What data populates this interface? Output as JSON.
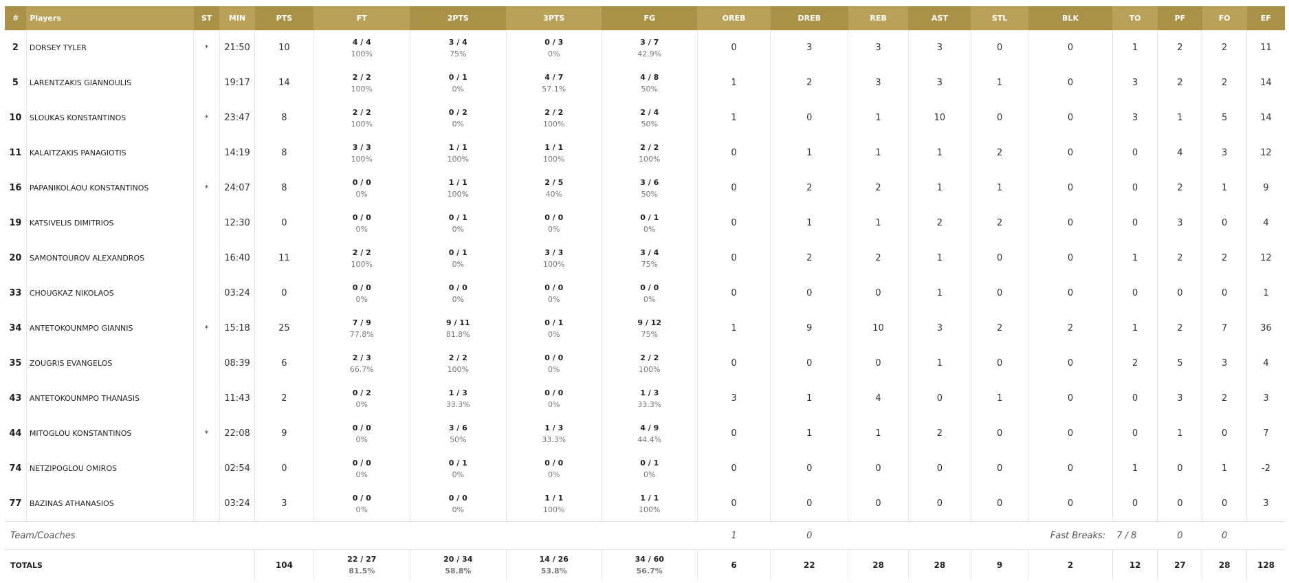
{
  "headers": [
    "#",
    "Players",
    "ST",
    "MIN",
    "PTS",
    "FT",
    "2PTS",
    "3PTS",
    "FG",
    "OREB",
    "DREB",
    "REB",
    "AST",
    "STL",
    "BLK",
    "TO",
    "PF",
    "FO",
    "EF"
  ],
  "players": [
    {
      "num": "2",
      "name": "DORSEY TYLER",
      "st": "*",
      "min": "21:50",
      "pts": "10",
      "ft": "4 / 4",
      "ft_pct": "100%",
      "p2": "3 / 4",
      "p2_pct": "75%",
      "p3": "0 / 3",
      "p3_pct": "0%",
      "fg": "3 / 7",
      "fg_pct": "42.9%",
      "oreb": "0",
      "dreb": "3",
      "reb": "3",
      "ast": "3",
      "stl": "0",
      "blk": "0",
      "to": "1",
      "pf": "2",
      "fo": "2",
      "ef": "11"
    },
    {
      "num": "5",
      "name": "LARENTZAKIS GIANNOULIS",
      "st": "",
      "min": "19:17",
      "pts": "14",
      "ft": "2 / 2",
      "ft_pct": "100%",
      "p2": "0 / 1",
      "p2_pct": "0%",
      "p3": "4 / 7",
      "p3_pct": "57.1%",
      "fg": "4 / 8",
      "fg_pct": "50%",
      "oreb": "1",
      "dreb": "2",
      "reb": "3",
      "ast": "3",
      "stl": "1",
      "blk": "0",
      "to": "3",
      "pf": "2",
      "fo": "2",
      "ef": "14"
    },
    {
      "num": "10",
      "name": "SLOUKAS KONSTANTINOS",
      "st": "*",
      "min": "23:47",
      "pts": "8",
      "ft": "2 / 2",
      "ft_pct": "100%",
      "p2": "0 / 2",
      "p2_pct": "0%",
      "p3": "2 / 2",
      "p3_pct": "100%",
      "fg": "2 / 4",
      "fg_pct": "50%",
      "oreb": "1",
      "dreb": "0",
      "reb": "1",
      "ast": "10",
      "stl": "0",
      "blk": "0",
      "to": "3",
      "pf": "1",
      "fo": "5",
      "ef": "14"
    },
    {
      "num": "11",
      "name": "KALAITZAKIS PANAGIOTIS",
      "st": "",
      "min": "14:19",
      "pts": "8",
      "ft": "3 / 3",
      "ft_pct": "100%",
      "p2": "1 / 1",
      "p2_pct": "100%",
      "p3": "1 / 1",
      "p3_pct": "100%",
      "fg": "2 / 2",
      "fg_pct": "100%",
      "oreb": "0",
      "dreb": "1",
      "reb": "1",
      "ast": "1",
      "stl": "2",
      "blk": "0",
      "to": "0",
      "pf": "4",
      "fo": "3",
      "ef": "12"
    },
    {
      "num": "16",
      "name": "PAPANIKOLAOU KONSTANTINOS",
      "st": "*",
      "min": "24:07",
      "pts": "8",
      "ft": "0 / 0",
      "ft_pct": "0%",
      "p2": "1 / 1",
      "p2_pct": "100%",
      "p3": "2 / 5",
      "p3_pct": "40%",
      "fg": "3 / 6",
      "fg_pct": "50%",
      "oreb": "0",
      "dreb": "2",
      "reb": "2",
      "ast": "1",
      "stl": "1",
      "blk": "0",
      "to": "0",
      "pf": "2",
      "fo": "1",
      "ef": "9"
    },
    {
      "num": "19",
      "name": "KATSIVELIS DIMITRIOS",
      "st": "",
      "min": "12:30",
      "pts": "0",
      "ft": "0 / 0",
      "ft_pct": "0%",
      "p2": "0 / 1",
      "p2_pct": "0%",
      "p3": "0 / 0",
      "p3_pct": "0%",
      "fg": "0 / 1",
      "fg_pct": "0%",
      "oreb": "0",
      "dreb": "1",
      "reb": "1",
      "ast": "2",
      "stl": "2",
      "blk": "0",
      "to": "0",
      "pf": "3",
      "fo": "0",
      "ef": "4"
    },
    {
      "num": "20",
      "name": "SAMONTOUROV ALEXANDROS",
      "st": "",
      "min": "16:40",
      "pts": "11",
      "ft": "2 / 2",
      "ft_pct": "100%",
      "p2": "0 / 1",
      "p2_pct": "0%",
      "p3": "3 / 3",
      "p3_pct": "100%",
      "fg": "3 / 4",
      "fg_pct": "75%",
      "oreb": "0",
      "dreb": "2",
      "reb": "2",
      "ast": "1",
      "stl": "0",
      "blk": "0",
      "to": "1",
      "pf": "2",
      "fo": "2",
      "ef": "12"
    },
    {
      "num": "33",
      "name": "CHOUGKAZ NIKOLAOS",
      "st": "",
      "min": "03:24",
      "pts": "0",
      "ft": "0 / 0",
      "ft_pct": "0%",
      "p2": "0 / 0",
      "p2_pct": "0%",
      "p3": "0 / 0",
      "p3_pct": "0%",
      "fg": "0 / 0",
      "fg_pct": "0%",
      "oreb": "0",
      "dreb": "0",
      "reb": "0",
      "ast": "1",
      "stl": "0",
      "blk": "0",
      "to": "0",
      "pf": "0",
      "fo": "0",
      "ef": "1"
    },
    {
      "num": "34",
      "name": "ANTETOKOUNMPO GIANNIS",
      "st": "*",
      "min": "15:18",
      "pts": "25",
      "ft": "7 / 9",
      "ft_pct": "77.8%",
      "p2": "9 / 11",
      "p2_pct": "81.8%",
      "p3": "0 / 1",
      "p3_pct": "0%",
      "fg": "9 / 12",
      "fg_pct": "75%",
      "oreb": "1",
      "dreb": "9",
      "reb": "10",
      "ast": "3",
      "stl": "2",
      "blk": "2",
      "to": "1",
      "pf": "2",
      "fo": "7",
      "ef": "36"
    },
    {
      "num": "35",
      "name": "ZOUGRIS EVANGELOS",
      "st": "",
      "min": "08:39",
      "pts": "6",
      "ft": "2 / 3",
      "ft_pct": "66.7%",
      "p2": "2 / 2",
      "p2_pct": "100%",
      "p3": "0 / 0",
      "p3_pct": "0%",
      "fg": "2 / 2",
      "fg_pct": "100%",
      "oreb": "0",
      "dreb": "0",
      "reb": "0",
      "ast": "1",
      "stl": "0",
      "blk": "0",
      "to": "2",
      "pf": "5",
      "fo": "3",
      "ef": "4"
    },
    {
      "num": "43",
      "name": "ANTETOKOUNMPO THANASIS",
      "st": "",
      "min": "11:43",
      "pts": "2",
      "ft": "0 / 2",
      "ft_pct": "0%",
      "p2": "1 / 3",
      "p2_pct": "33.3%",
      "p3": "0 / 0",
      "p3_pct": "0%",
      "fg": "1 / 3",
      "fg_pct": "33.3%",
      "oreb": "3",
      "dreb": "1",
      "reb": "4",
      "ast": "0",
      "stl": "1",
      "blk": "0",
      "to": "0",
      "pf": "3",
      "fo": "2",
      "ef": "3"
    },
    {
      "num": "44",
      "name": "MITOGLOU KONSTANTINOS",
      "st": "*",
      "min": "22:08",
      "pts": "9",
      "ft": "0 / 0",
      "ft_pct": "0%",
      "p2": "3 / 6",
      "p2_pct": "50%",
      "p3": "1 / 3",
      "p3_pct": "33.3%",
      "fg": "4 / 9",
      "fg_pct": "44.4%",
      "oreb": "0",
      "dreb": "1",
      "reb": "1",
      "ast": "2",
      "stl": "0",
      "blk": "0",
      "to": "0",
      "pf": "1",
      "fo": "0",
      "ef": "7"
    },
    {
      "num": "74",
      "name": "NETZIPOGLOU OMIROS",
      "st": "",
      "min": "02:54",
      "pts": "0",
      "ft": "0 / 0",
      "ft_pct": "0%",
      "p2": "0 / 1",
      "p2_pct": "0%",
      "p3": "0 / 0",
      "p3_pct": "0%",
      "fg": "0 / 1",
      "fg_pct": "0%",
      "oreb": "0",
      "dreb": "0",
      "reb": "0",
      "ast": "0",
      "stl": "0",
      "blk": "0",
      "to": "1",
      "pf": "0",
      "fo": "1",
      "ef": "-2"
    },
    {
      "num": "77",
      "name": "BAZINAS ATHANASIOS",
      "st": "",
      "min": "03:24",
      "pts": "3",
      "ft": "0 / 0",
      "ft_pct": "0%",
      "p2": "0 / 0",
      "p2_pct": "0%",
      "p3": "1 / 1",
      "p3_pct": "100%",
      "fg": "1 / 1",
      "fg_pct": "100%",
      "oreb": "0",
      "dreb": "0",
      "reb": "0",
      "ast": "0",
      "stl": "0",
      "blk": "0",
      "to": "0",
      "pf": "0",
      "fo": "0",
      "ef": "3"
    }
  ],
  "team": {
    "label": "Team/Coaches",
    "oreb": "1",
    "dreb": "0",
    "fast_breaks_label": "Fast Breaks:",
    "fast_breaks": "7 / 8",
    "to": "0",
    "pf": "0"
  },
  "totals": {
    "label": "TOTALS",
    "pts": "104",
    "ft": "22 / 27",
    "ft_pct": "81.5%",
    "p2": "20 / 34",
    "p2_pct": "58.8%",
    "p3": "14 / 26",
    "p3_pct": "53.8%",
    "fg": "34 / 60",
    "fg_pct": "56.7%",
    "oreb": "6",
    "dreb": "22",
    "reb": "28",
    "ast": "28",
    "stl": "9",
    "blk": "2",
    "to": "12",
    "pf": "27",
    "fo": "28",
    "ef": "128"
  },
  "colors": {
    "header_dark": "#a99147",
    "header_light": "#b9a159"
  }
}
